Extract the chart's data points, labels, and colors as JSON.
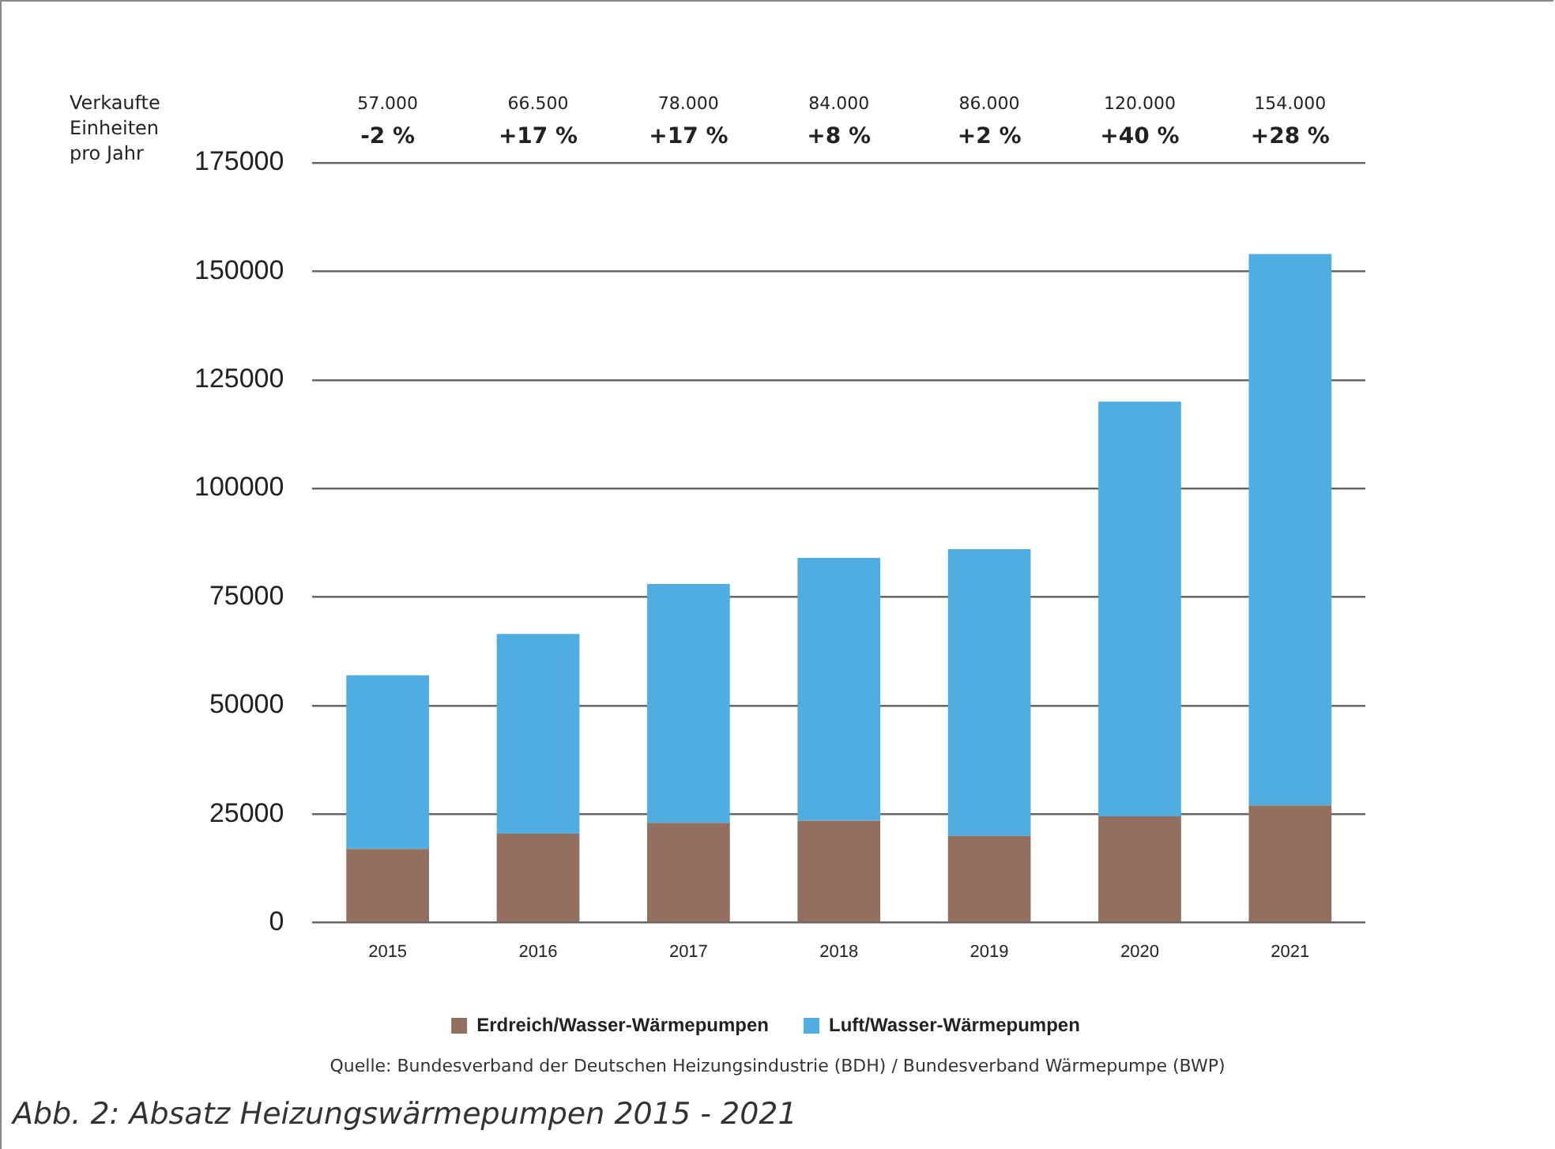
{
  "chart_data": {
    "type": "bar",
    "title": "Abb. 2: Absatz Heizungswärmepumpen 2015 - 2021",
    "ylabel": "Verkaufte Einheiten pro Jahr",
    "categories": [
      "2015",
      "2016",
      "2017",
      "2018",
      "2019",
      "2020",
      "2021"
    ],
    "series": [
      {
        "name": "Erdreich/Wasser-Wärmepumpen",
        "color": "#926f5f",
        "values": [
          17000,
          20500,
          23000,
          23500,
          20000,
          24500,
          27000
        ]
      },
      {
        "name": "Luft/Wasser-Wärmepumpen",
        "color": "#4fade2",
        "values": [
          40000,
          46000,
          55000,
          60500,
          66000,
          95500,
          127000
        ]
      }
    ],
    "stacked": true,
    "annotations": [
      "57.000",
      "-2 %",
      "66.500",
      "+17 %",
      "78.000",
      "+17 %",
      "84.000",
      "+8 %",
      "86.000",
      "+2 %",
      "120.000",
      "+40 %",
      "154.000",
      "+28 %",
      "Quelle: Bundesverband der Deutschen Heizungsindustrie (BDH) / Bundesverband Wärmepumpe (BWP)"
    ],
    "ylim": [
      0,
      175000
    ],
    "yticks": [
      0,
      25000,
      50000,
      75000,
      100000,
      125000,
      150000,
      175000
    ],
    "grid": "y",
    "legend": "bottom"
  }
}
